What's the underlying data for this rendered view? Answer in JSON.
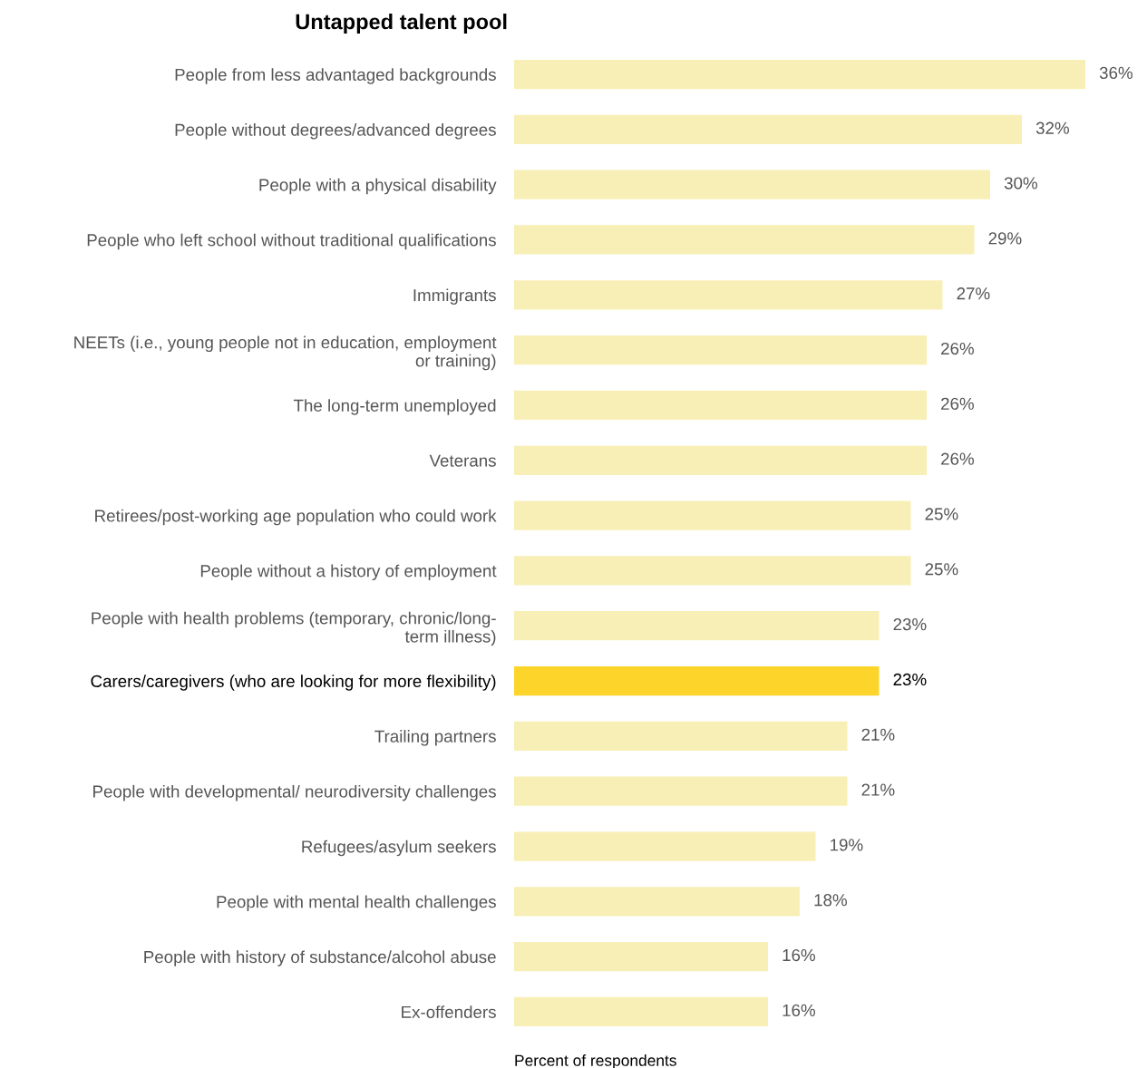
{
  "chart_data": {
    "type": "bar",
    "orientation": "horizontal",
    "title": "Untapped talent pool",
    "xlabel": "Percent of respondents",
    "categories": [
      "People from less advantaged backgrounds",
      "People without degrees/advanced degrees",
      "People with a physical disability",
      "People who left school without traditional qualifications",
      "Immigrants",
      "NEETs (i.e., young people not in education, employment\nor training)",
      "The long-term unemployed",
      "Veterans",
      "Retirees/post-working age population who could work",
      "People without a history of employment",
      "People with health problems (temporary, chronic/long-\nterm illness)",
      "Carers/caregivers (who are looking for more flexibility)",
      "Trailing partners",
      "People with developmental/ neurodiversity challenges",
      "Refugees/asylum seekers",
      "People with mental health challenges",
      "People with history of substance/alcohol abuse",
      "Ex-offenders"
    ],
    "values": [
      36,
      32,
      30,
      29,
      27,
      26,
      26,
      26,
      25,
      25,
      23,
      23,
      21,
      21,
      19,
      18,
      16,
      16
    ],
    "value_labels": [
      "36%",
      "32%",
      "30%",
      "29%",
      "27%",
      "26%",
      "26%",
      "26%",
      "25%",
      "25%",
      "23%",
      "23%",
      "21%",
      "21%",
      "19%",
      "18%",
      "16%",
      "16%"
    ],
    "colors": [
      "#f8efb6",
      "#f8efb6",
      "#f8efb6",
      "#f8efb6",
      "#f8efb6",
      "#f8efb6",
      "#f8efb6",
      "#f8efb6",
      "#f8efb6",
      "#f8efb6",
      "#f8efb6",
      "#fdd42a",
      "#f8efb6",
      "#f8efb6",
      "#f8efb6",
      "#f8efb6",
      "#f8efb6",
      "#f8efb6"
    ],
    "grid": false,
    "legend": false
  }
}
